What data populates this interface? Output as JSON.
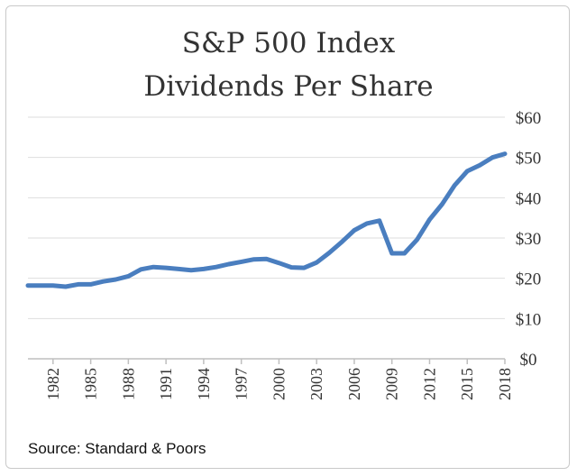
{
  "chart_data": {
    "type": "line",
    "title": "S&P 500 Index",
    "subtitle": "Dividends Per Share",
    "source": "Source:  Standard & Poors",
    "y_ticks": [
      "$0",
      "$10",
      "$20",
      "$30",
      "$40",
      "$50",
      "$60"
    ],
    "x_ticks": [
      "1982",
      "1985",
      "1988",
      "1991",
      "1994",
      "1997",
      "2000",
      "2003",
      "2006",
      "2009",
      "2012",
      "2015",
      "2018"
    ],
    "ylim": [
      0,
      60
    ],
    "xlim": [
      1980,
      2018
    ],
    "grid": true,
    "line_color": "#4a7ebf",
    "series": [
      {
        "x": [
          1980,
          1981,
          1982,
          1983,
          1984,
          1985,
          1986,
          1987,
          1988,
          1989,
          1990,
          1991,
          1992,
          1993,
          1994,
          1995,
          1996,
          1997,
          1998,
          1999,
          2000,
          2001,
          2002,
          2003,
          2004,
          2005,
          2006,
          2007,
          2008,
          2009,
          2010,
          2011,
          2012,
          2013,
          2014,
          2015,
          2016,
          2017,
          2018
        ],
        "values": [
          18.2,
          18.2,
          18.2,
          17.9,
          18.5,
          18.5,
          19.2,
          19.7,
          20.5,
          22.2,
          22.8,
          22.6,
          22.3,
          22.0,
          22.3,
          22.8,
          23.5,
          24.1,
          24.7,
          24.8,
          23.8,
          22.7,
          22.6,
          23.9,
          26.3,
          29.0,
          31.9,
          33.6,
          34.3,
          26.2,
          26.2,
          29.6,
          34.6,
          38.4,
          43.1,
          46.6,
          48.1,
          50.0,
          50.9
        ]
      }
    ]
  }
}
